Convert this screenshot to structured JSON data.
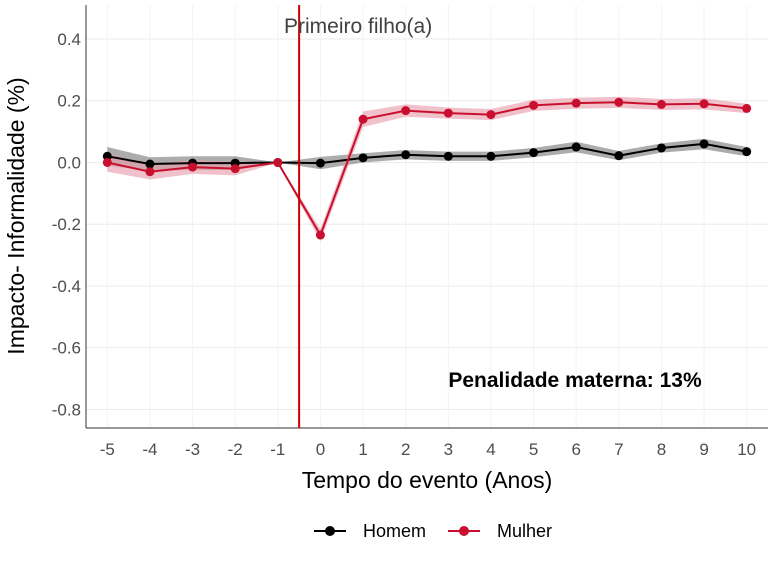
{
  "chart_data": {
    "type": "line",
    "title": "",
    "xlabel": "Tempo do evento (Anos)",
    "ylabel": "Impacto- Informalidade  (%)",
    "x": [
      -5,
      -4,
      -3,
      -2,
      -1,
      0,
      1,
      2,
      3,
      4,
      5,
      6,
      7,
      8,
      9,
      10
    ],
    "xlim": [
      -5.5,
      10.5
    ],
    "ylim": [
      -0.86,
      0.51
    ],
    "yticks": [
      0.4,
      0.2,
      0.0,
      -0.2,
      -0.4,
      -0.6,
      -0.8
    ],
    "ytick_labels": [
      "0.4",
      "0.2",
      "0.0",
      "-0.2",
      "-0.4",
      "-0.6",
      "-0.8"
    ],
    "xtick_labels": [
      "-5",
      "-4",
      "-3",
      "-2",
      "-1",
      "0",
      "1",
      "2",
      "3",
      "4",
      "5",
      "6",
      "7",
      "8",
      "9",
      "10"
    ],
    "grid": true,
    "event_line": {
      "x": -0.5,
      "label": "Primeiro filho(a)",
      "color": "#cc0000"
    },
    "annotation": "Penalidade materna: 13%",
    "legend_position": "bottom",
    "series": [
      {
        "name": "Homem",
        "color": "#000000",
        "band_color": "#808080",
        "values": [
          0.02,
          -0.005,
          -0.002,
          -0.002,
          0.0,
          -0.002,
          0.015,
          0.025,
          0.02,
          0.02,
          0.032,
          0.05,
          0.022,
          0.047,
          0.06,
          0.035
        ],
        "ci_half": [
          0.03,
          0.022,
          0.022,
          0.022,
          0.0,
          0.02,
          0.015,
          0.015,
          0.015,
          0.015,
          0.015,
          0.017,
          0.015,
          0.015,
          0.017,
          0.015
        ]
      },
      {
        "name": "Mulher",
        "color": "#c8102e",
        "band_color": "#e8a0ae",
        "values": [
          0.0,
          -0.03,
          -0.015,
          -0.02,
          0.0,
          -0.235,
          0.14,
          0.168,
          0.16,
          0.155,
          0.185,
          0.192,
          0.195,
          0.188,
          0.19,
          0.175
        ],
        "ci_half": [
          0.03,
          0.025,
          0.022,
          0.022,
          0.0,
          0.02,
          0.025,
          0.02,
          0.018,
          0.018,
          0.018,
          0.018,
          0.018,
          0.018,
          0.018,
          0.015
        ]
      }
    ]
  }
}
